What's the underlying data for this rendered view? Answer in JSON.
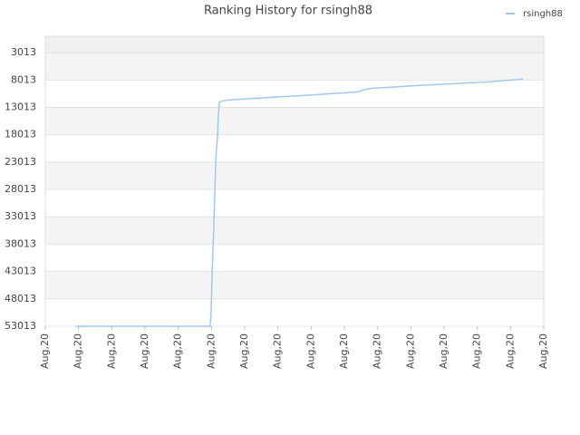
{
  "chart_data": {
    "type": "line",
    "title": "Ranking History for rsingh88",
    "x": [
      0.9,
      4.96,
      4.99,
      5.02,
      5.07,
      5.13,
      5.18,
      5.21,
      5.24,
      5.45,
      6.82,
      8.18,
      9.41,
      9.55,
      9.82,
      10.36,
      11.18,
      12.27,
      13.36,
      14.37
    ],
    "series": [
      {
        "name": "rsingh88",
        "color": "#9fc8f0",
        "values": [
          53013,
          53013,
          50513,
          43013,
          35013,
          22513,
          18346,
          14180,
          12013,
          11680,
          11180,
          10680,
          10180,
          9846,
          9513,
          9346,
          9013,
          8680,
          8346,
          7846
        ]
      }
    ],
    "xlim": [
      0,
      15
    ],
    "xticks": [
      {
        "value": 0,
        "label": "Aug,20"
      },
      {
        "value": 1,
        "label": "Aug,20"
      },
      {
        "value": 2,
        "label": "Aug,20"
      },
      {
        "value": 3,
        "label": "Aug,20"
      },
      {
        "value": 4,
        "label": "Aug,20"
      },
      {
        "value": 5,
        "label": "Aug,20"
      },
      {
        "value": 6,
        "label": "Aug,20"
      },
      {
        "value": 7,
        "label": "Aug,20"
      },
      {
        "value": 8,
        "label": "Aug,20"
      },
      {
        "value": 9,
        "label": "Aug,20"
      },
      {
        "value": 10,
        "label": "Aug,20"
      },
      {
        "value": 11,
        "label": "Aug,20"
      },
      {
        "value": 12,
        "label": "Aug,20"
      },
      {
        "value": 13,
        "label": "Aug,20"
      },
      {
        "value": 14,
        "label": "Aug,20"
      },
      {
        "value": 15,
        "label": "Aug,20"
      }
    ],
    "ylim": [
      53013,
      13
    ],
    "yticks": [
      3013,
      8013,
      13013,
      18013,
      23013,
      28013,
      33013,
      38013,
      43013,
      48013,
      53013
    ],
    "grid": true,
    "legend": "top-right"
  }
}
